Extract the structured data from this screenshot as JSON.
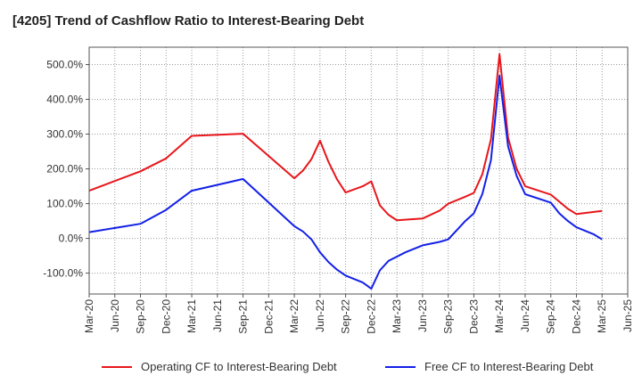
{
  "title": "[4205]  Trend of Cashflow Ratio to Interest-Bearing Debt",
  "chart_data": {
    "type": "line",
    "title": "[4205]  Trend of Cashflow Ratio to Interest-Bearing Debt",
    "xlabel": "",
    "ylabel": "",
    "ylim": [
      -160,
      550
    ],
    "y_ticks": [
      -100,
      0,
      100,
      200,
      300,
      400,
      500
    ],
    "y_tick_labels": [
      "-100.0%",
      "0.0%",
      "100.0%",
      "200.0%",
      "300.0%",
      "400.0%",
      "500.0%"
    ],
    "x_tick_labels": [
      "Mar-20",
      "Jun-20",
      "Sep-20",
      "Dec-20",
      "Mar-21",
      "Jun-21",
      "Sep-21",
      "Dec-21",
      "Mar-22",
      "Jun-22",
      "Sep-22",
      "Dec-22",
      "Mar-23",
      "Jun-23",
      "Sep-23",
      "Dec-23",
      "Mar-24",
      "Jun-24",
      "Sep-24",
      "Dec-24",
      "Mar-25",
      "Jun-25"
    ],
    "x_range_months": [
      "2020-03",
      "2025-06"
    ],
    "grid": true,
    "grid_style": "dotted",
    "legend_position": "bottom",
    "series": [
      {
        "name": "Operating CF to Interest-Bearing Debt",
        "color": "#e8161b",
        "points": [
          [
            "2020-03",
            137
          ],
          [
            "2020-09",
            193
          ],
          [
            "2020-12",
            230
          ],
          [
            "2021-03",
            295
          ],
          [
            "2021-09",
            301
          ],
          [
            "2022-03",
            173
          ],
          [
            "2022-04",
            195
          ],
          [
            "2022-05",
            228
          ],
          [
            "2022-06",
            281
          ],
          [
            "2022-07",
            220
          ],
          [
            "2022-08",
            170
          ],
          [
            "2022-09",
            132
          ],
          [
            "2022-11",
            150
          ],
          [
            "2022-12",
            164
          ],
          [
            "2023-01",
            95
          ],
          [
            "2023-02",
            68
          ],
          [
            "2023-03",
            52
          ],
          [
            "2023-06",
            57
          ],
          [
            "2023-08",
            80
          ],
          [
            "2023-09",
            100
          ],
          [
            "2023-11",
            120
          ],
          [
            "2023-12",
            131
          ],
          [
            "2024-01",
            185
          ],
          [
            "2024-02",
            285
          ],
          [
            "2024-03",
            530
          ],
          [
            "2024-04",
            290
          ],
          [
            "2024-05",
            200
          ],
          [
            "2024-06",
            150
          ],
          [
            "2024-09",
            126
          ],
          [
            "2024-11",
            85
          ],
          [
            "2024-12",
            70
          ],
          [
            "2025-03",
            79
          ]
        ]
      },
      {
        "name": "Free CF to Interest-Bearing Debt",
        "color": "#1320e8",
        "points": [
          [
            "2020-03",
            18
          ],
          [
            "2020-09",
            42
          ],
          [
            "2020-12",
            82
          ],
          [
            "2021-03",
            137
          ],
          [
            "2021-09",
            171
          ],
          [
            "2022-03",
            35
          ],
          [
            "2022-04",
            20
          ],
          [
            "2022-05",
            -3
          ],
          [
            "2022-06",
            -40
          ],
          [
            "2022-07",
            -68
          ],
          [
            "2022-08",
            -90
          ],
          [
            "2022-09",
            -107
          ],
          [
            "2022-11",
            -127
          ],
          [
            "2022-12",
            -145
          ],
          [
            "2023-01",
            -92
          ],
          [
            "2023-02",
            -65
          ],
          [
            "2023-04",
            -40
          ],
          [
            "2023-06",
            -20
          ],
          [
            "2023-08",
            -10
          ],
          [
            "2023-09",
            -3
          ],
          [
            "2023-11",
            50
          ],
          [
            "2023-12",
            72
          ],
          [
            "2024-01",
            128
          ],
          [
            "2024-02",
            225
          ],
          [
            "2024-03",
            468
          ],
          [
            "2024-04",
            265
          ],
          [
            "2024-05",
            180
          ],
          [
            "2024-06",
            127
          ],
          [
            "2024-09",
            103
          ],
          [
            "2024-10",
            72
          ],
          [
            "2024-11",
            50
          ],
          [
            "2024-12",
            32
          ],
          [
            "2025-02",
            12
          ],
          [
            "2025-03",
            -3
          ]
        ]
      }
    ]
  }
}
